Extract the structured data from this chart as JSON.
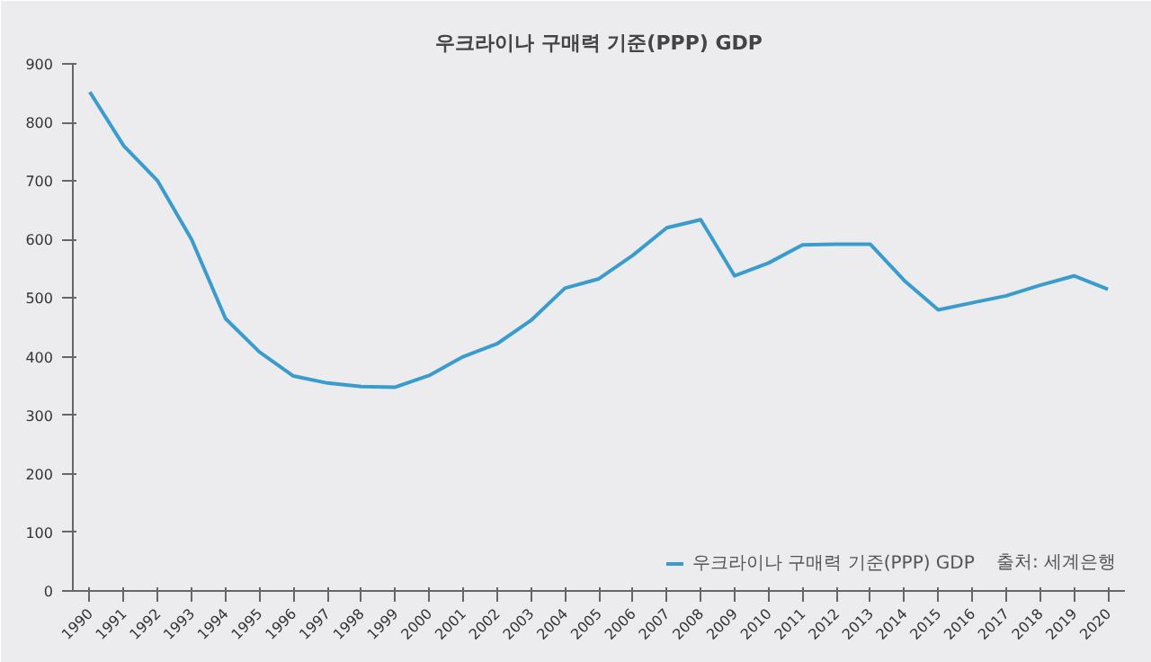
{
  "chart_data": {
    "type": "line",
    "title": "우크라이나 구매력 기준(PPP) GDP",
    "categories": [
      "1990",
      "1991",
      "1992",
      "1993",
      "1994",
      "1995",
      "1996",
      "1997",
      "1998",
      "1999",
      "2000",
      "2001",
      "2002",
      "2003",
      "2004",
      "2005",
      "2006",
      "2007",
      "2008",
      "2009",
      "2010",
      "2011",
      "2012",
      "2013",
      "2014",
      "2015",
      "2016",
      "2017",
      "2018",
      "2019",
      "2020"
    ],
    "series": [
      {
        "name": "우크라이나 구매력 기준(PPP) GDP",
        "color": "#3a9ccc",
        "values": [
          852,
          760,
          700,
          600,
          465,
          408,
          367,
          355,
          349,
          348,
          368,
          400,
          422,
          462,
          517,
          533,
          573,
          620,
          634,
          538,
          560,
          591,
          592,
          592,
          530,
          480,
          492,
          504,
          522,
          538,
          515
        ]
      }
    ],
    "ylim": [
      0,
      900
    ],
    "yticks": [
      0,
      100,
      200,
      300,
      400,
      500,
      600,
      700,
      800,
      900
    ],
    "annotations": [
      "출처: 세계은행"
    ],
    "legend": "bottom right",
    "grid": false,
    "line_style": "solid",
    "marker": "none"
  }
}
